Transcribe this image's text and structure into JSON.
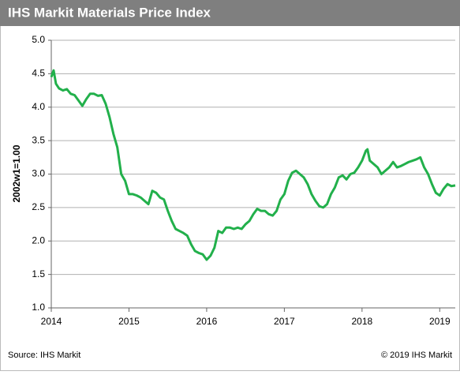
{
  "chart_data": {
    "type": "line",
    "title": "IHS Markit Materials Price Index",
    "ylabel": "2002w1=1.00",
    "source": "Source: IHS Markit",
    "copyright": "© 2019 IHS Markit",
    "xlim": [
      2014,
      2019.2
    ],
    "xticks": [
      2014,
      2015,
      2016,
      2017,
      2018,
      2019
    ],
    "ylim": [
      1,
      5
    ],
    "yticks": [
      {
        "value": 1,
        "label": "1.0"
      },
      1.5,
      {
        "value": 2,
        "label": "2.0"
      },
      2.5,
      {
        "value": 3,
        "label": "3.0"
      },
      3.5,
      {
        "value": 4,
        "label": "4.0"
      },
      4.5,
      {
        "value": 5,
        "label": "5.0"
      }
    ],
    "grid": true,
    "series": [
      {
        "color": "#22b04b",
        "x": [
          2014.0,
          2014.03,
          2014.06,
          2014.1,
          2014.15,
          2014.2,
          2014.25,
          2014.3,
          2014.35,
          2014.4,
          2014.45,
          2014.5,
          2014.55,
          2014.6,
          2014.65,
          2014.7,
          2014.75,
          2014.8,
          2014.85,
          2014.9,
          2014.95,
          2015.0,
          2015.05,
          2015.1,
          2015.15,
          2015.2,
          2015.25,
          2015.3,
          2015.35,
          2015.4,
          2015.45,
          2015.5,
          2015.55,
          2015.6,
          2015.65,
          2015.7,
          2015.75,
          2015.8,
          2015.85,
          2015.9,
          2015.95,
          2016.0,
          2016.05,
          2016.1,
          2016.15,
          2016.2,
          2016.25,
          2016.3,
          2016.35,
          2016.4,
          2016.45,
          2016.5,
          2016.55,
          2016.6,
          2016.65,
          2016.7,
          2016.75,
          2016.8,
          2016.85,
          2016.9,
          2016.95,
          2017.0,
          2017.05,
          2017.1,
          2017.15,
          2017.2,
          2017.25,
          2017.3,
          2017.35,
          2017.4,
          2017.45,
          2017.5,
          2017.55,
          2017.6,
          2017.65,
          2017.7,
          2017.75,
          2017.8,
          2017.85,
          2017.9,
          2017.95,
          2018.0,
          2018.05,
          2018.07,
          2018.1,
          2018.15,
          2018.2,
          2018.25,
          2018.3,
          2018.35,
          2018.4,
          2018.45,
          2018.5,
          2018.55,
          2018.6,
          2018.65,
          2018.7,
          2018.75,
          2018.8,
          2018.85,
          2018.9,
          2018.95,
          2019.0,
          2019.05,
          2019.1,
          2019.15,
          2019.2
        ],
        "values": [
          4.45,
          4.55,
          4.35,
          4.28,
          4.25,
          4.27,
          4.2,
          4.18,
          4.1,
          4.02,
          4.12,
          4.2,
          4.2,
          4.17,
          4.18,
          4.05,
          3.85,
          3.6,
          3.4,
          3.0,
          2.9,
          2.7,
          2.7,
          2.68,
          2.65,
          2.6,
          2.55,
          2.75,
          2.72,
          2.65,
          2.62,
          2.45,
          2.3,
          2.18,
          2.15,
          2.12,
          2.08,
          1.95,
          1.85,
          1.82,
          1.8,
          1.72,
          1.78,
          1.9,
          2.15,
          2.12,
          2.2,
          2.2,
          2.18,
          2.2,
          2.18,
          2.25,
          2.3,
          2.4,
          2.48,
          2.45,
          2.45,
          2.4,
          2.38,
          2.45,
          2.62,
          2.7,
          2.9,
          3.02,
          3.05,
          3.0,
          2.95,
          2.85,
          2.7,
          2.6,
          2.52,
          2.5,
          2.55,
          2.7,
          2.8,
          2.95,
          2.98,
          2.92,
          3.0,
          3.02,
          3.1,
          3.2,
          3.35,
          3.37,
          3.2,
          3.15,
          3.1,
          3.0,
          3.05,
          3.1,
          3.18,
          3.1,
          3.12,
          3.15,
          3.18,
          3.2,
          3.22,
          3.25,
          3.1,
          3.0,
          2.85,
          2.72,
          2.68,
          2.78,
          2.85,
          2.82,
          2.83
        ]
      }
    ]
  }
}
